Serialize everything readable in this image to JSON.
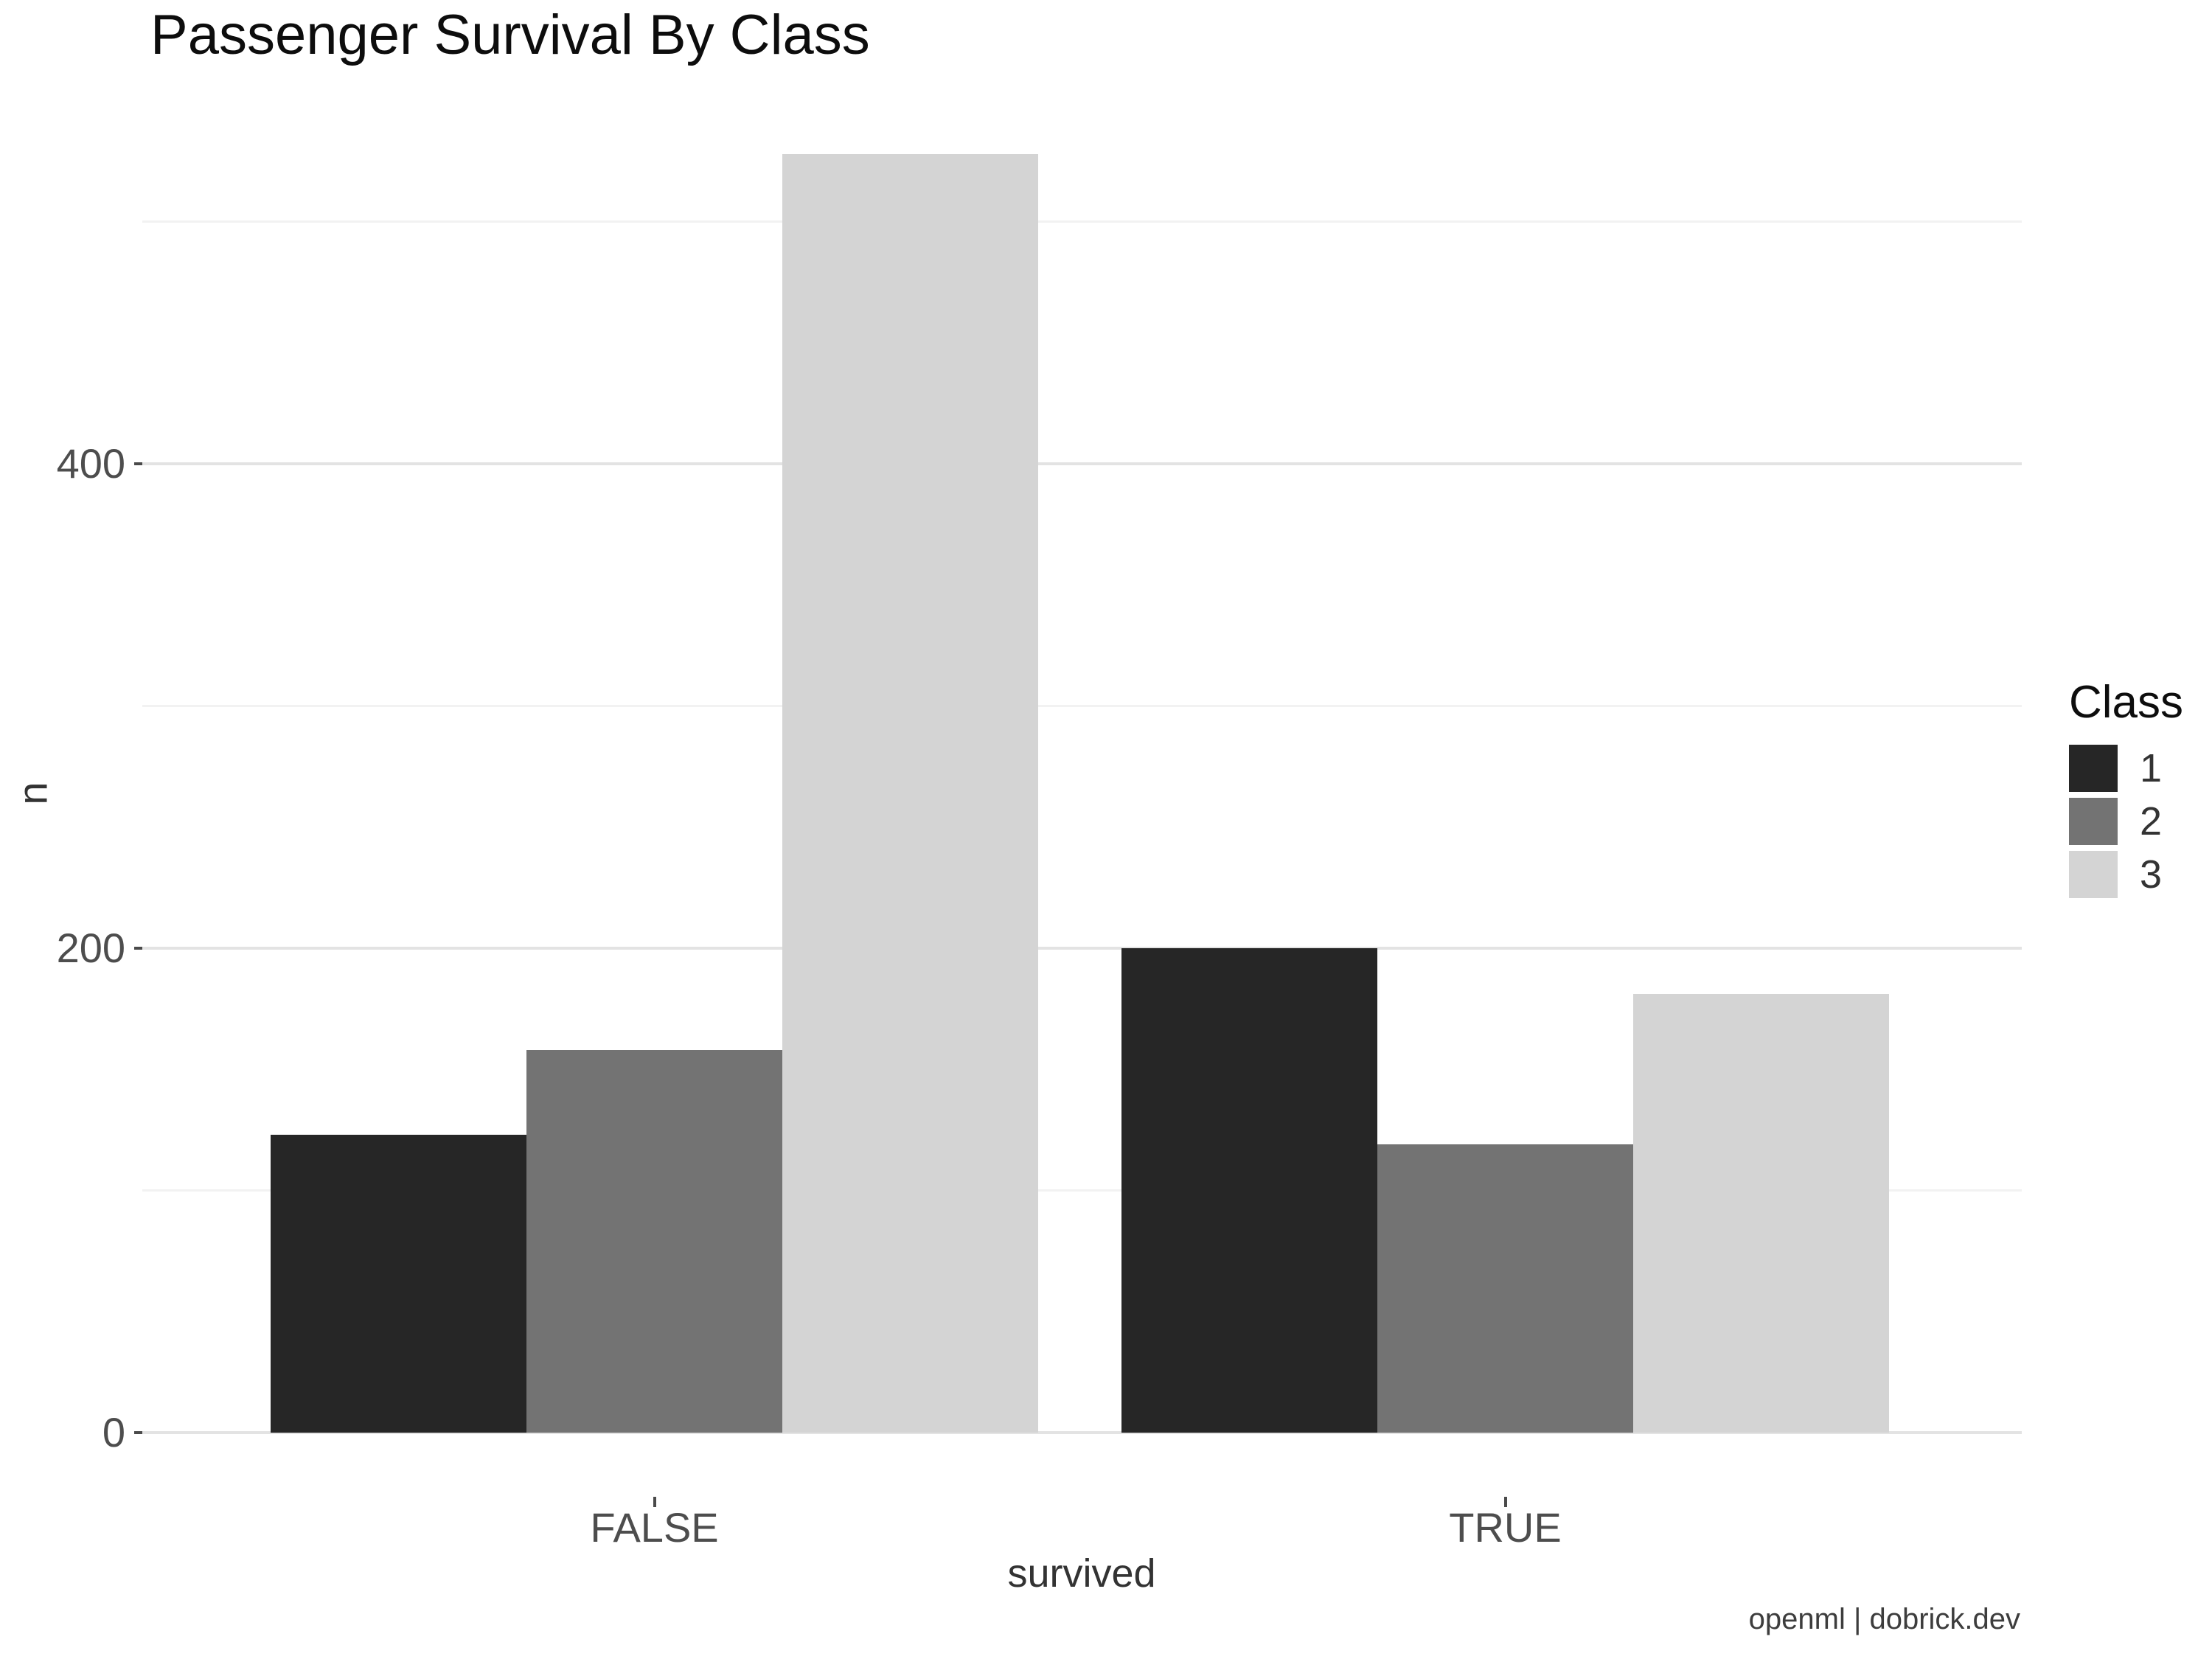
{
  "title": "Passenger Survival By Class",
  "caption": "openml | dobrick.dev",
  "legend": {
    "title": "Class",
    "entries": [
      {
        "label": "1",
        "color": "#262626"
      },
      {
        "label": "2",
        "color": "#737373"
      },
      {
        "label": "3",
        "color": "#d4d4d4"
      }
    ]
  },
  "chart_data": {
    "type": "bar",
    "grouping": "dodged",
    "title": "Passenger Survival By Class",
    "xlabel": "survived",
    "ylabel": "n",
    "categories": [
      "FALSE",
      "TRUE"
    ],
    "series": [
      {
        "name": "1",
        "color": "#262626",
        "values": [
          123,
          200
        ]
      },
      {
        "name": "2",
        "color": "#737373",
        "values": [
          158,
          119
        ]
      },
      {
        "name": "3",
        "color": "#d4d4d4",
        "values": [
          528,
          181
        ]
      }
    ],
    "ylim": [
      0,
      554
    ],
    "y_major_ticks": [
      0,
      200,
      400
    ],
    "y_minor_ticks": [
      100,
      300,
      500
    ],
    "grid": true,
    "legend_position": "right"
  }
}
